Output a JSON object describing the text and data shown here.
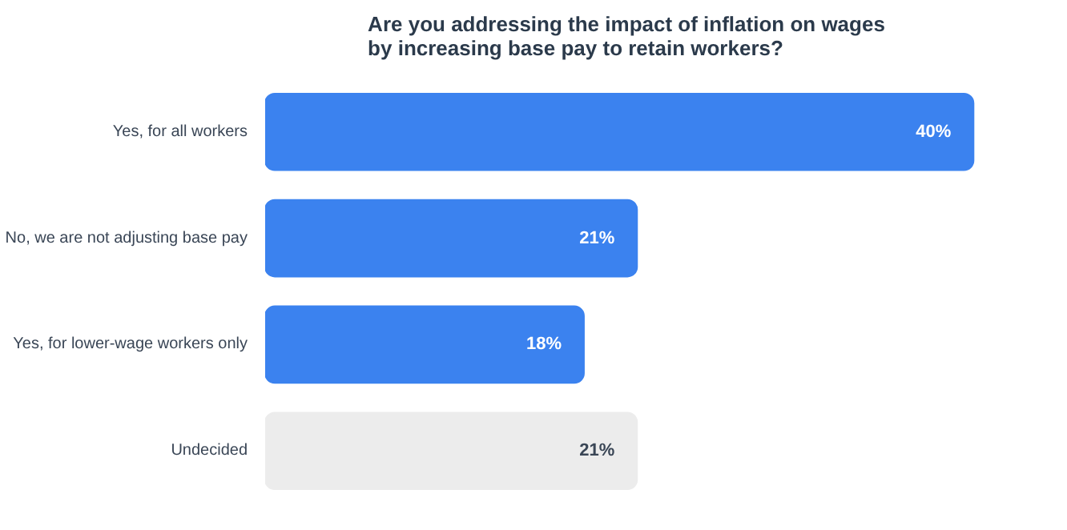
{
  "chart_data": {
    "type": "bar",
    "orientation": "horizontal",
    "title": "Are you addressing the impact of inflation on wages\nby increasing base pay to retain workers?",
    "categories": [
      "Yes, for all workers",
      "No, we are not adjusting base pay",
      "Yes, for lower-wage workers only",
      "Undecided"
    ],
    "values": [
      40,
      21,
      18,
      21
    ],
    "colors": [
      "#3b82ef",
      "#3b82ef",
      "#3b82ef",
      "#ececec"
    ],
    "value_labels": [
      "40%",
      "21%",
      "18%",
      "21%"
    ],
    "grid": false
  }
}
